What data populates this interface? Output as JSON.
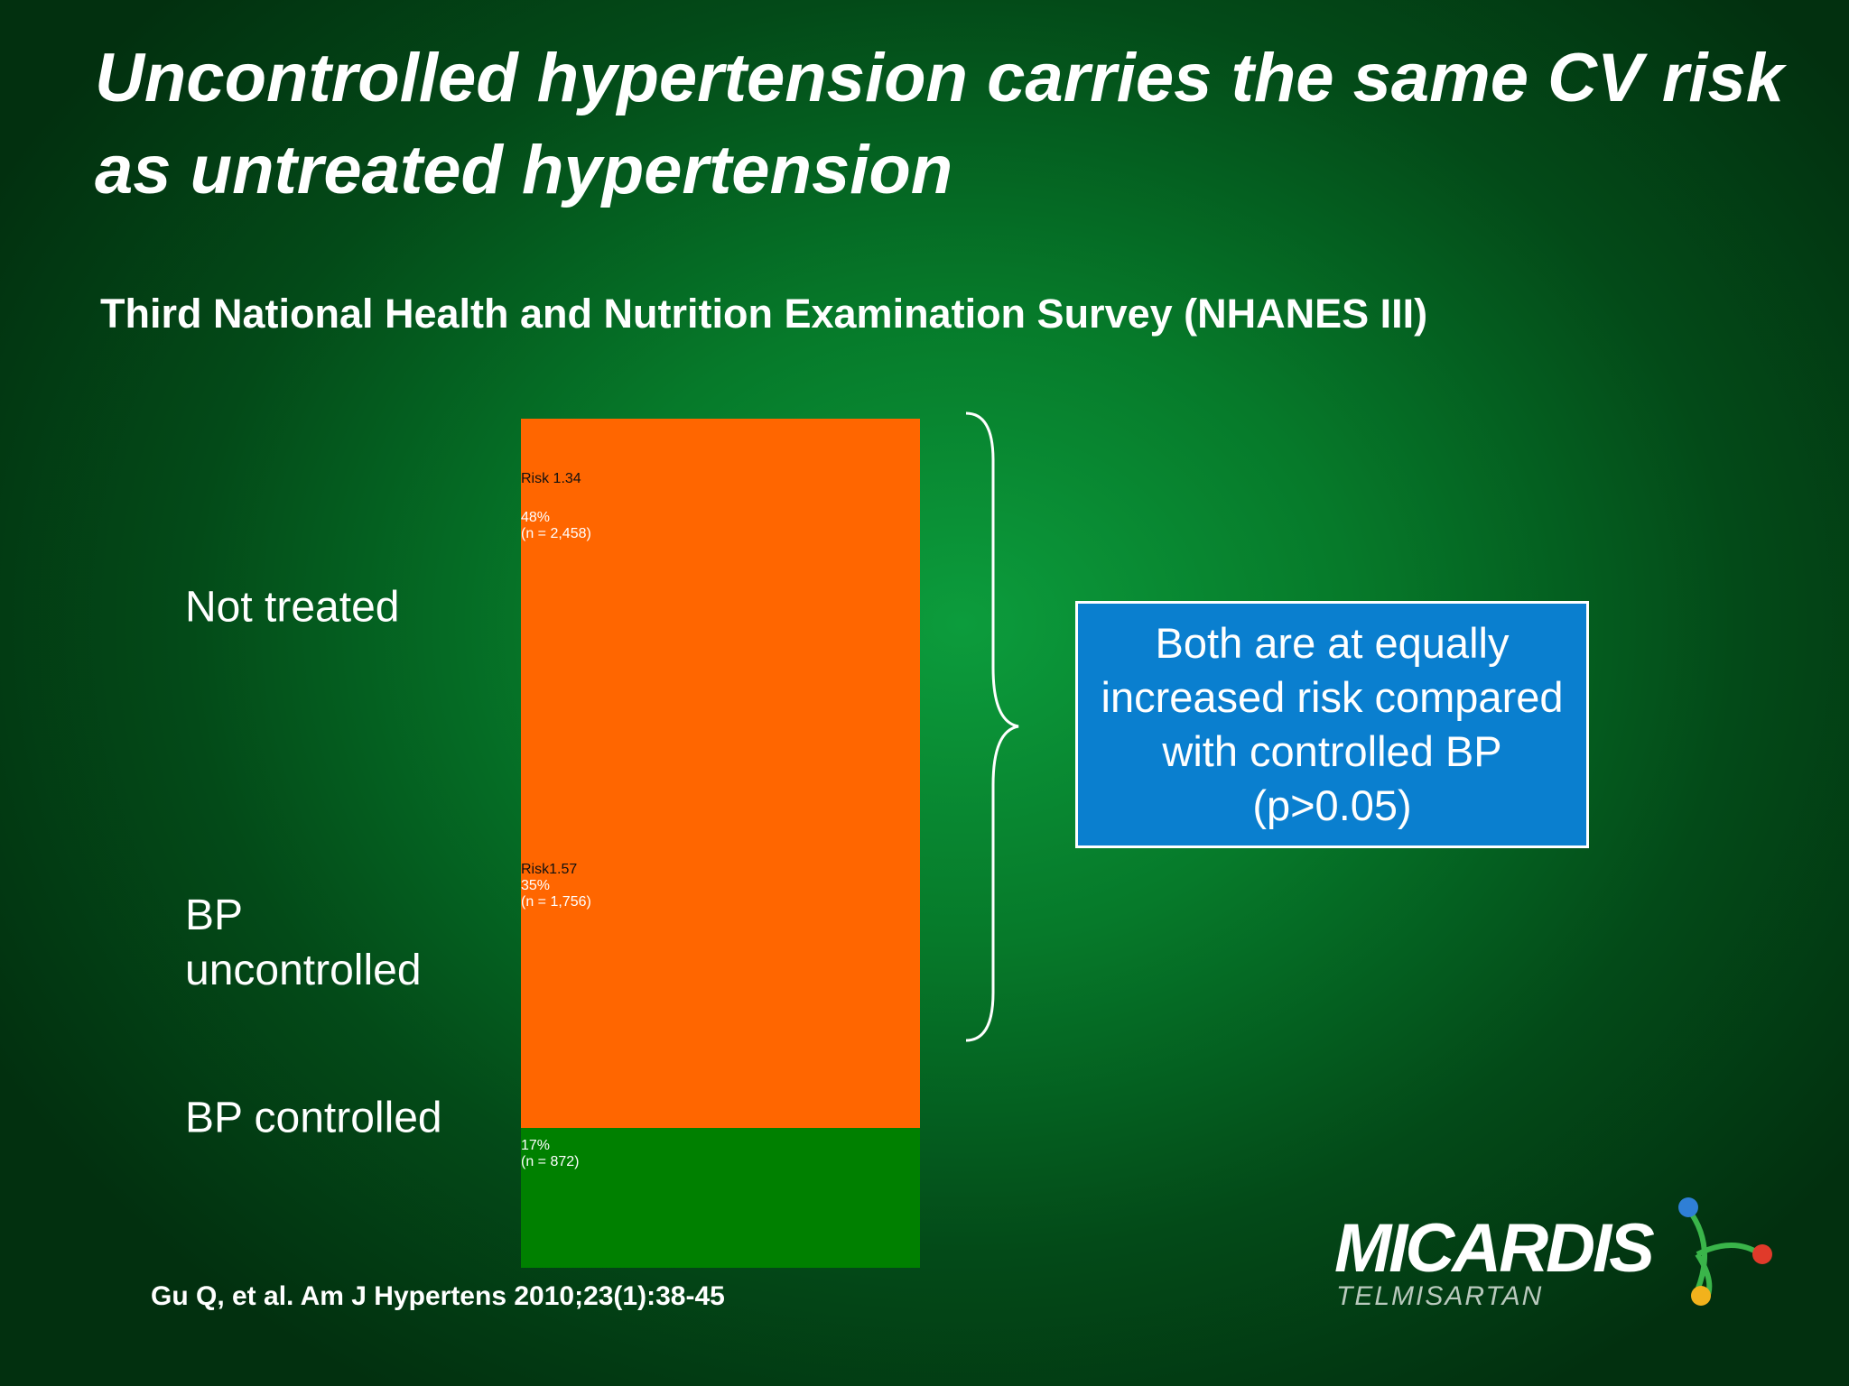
{
  "chart_data": {
    "type": "stacked-bar",
    "title": "Uncontrolled hypertension carries the same CV risk as untreated hypertension",
    "subtitle": "Third National Health and Nutrition Examination Survey (NHANES III)",
    "categories": [
      "Not treated",
      "BP uncontrolled",
      "BP controlled"
    ],
    "values": [
      48,
      35,
      17
    ],
    "value_labels": [
      "48%",
      "35%",
      "17%"
    ],
    "n_labels": [
      "(n = 2,458)",
      "(n = 1,756)",
      "(n = 872)"
    ],
    "risk_labels": [
      "Risk 1.34",
      "Risk1.57",
      null
    ],
    "colors": [
      "#ff6600",
      "#ff6600",
      "#008000"
    ],
    "annotation": "Both are at equally increased risk compared with controlled BP (p>0.05)",
    "citation": "Gu Q, et al. Am J Hypertens 2010;23(1):38-45",
    "logo": {
      "brand": "MICARDIS",
      "generic": "TELMISARTAN"
    }
  }
}
